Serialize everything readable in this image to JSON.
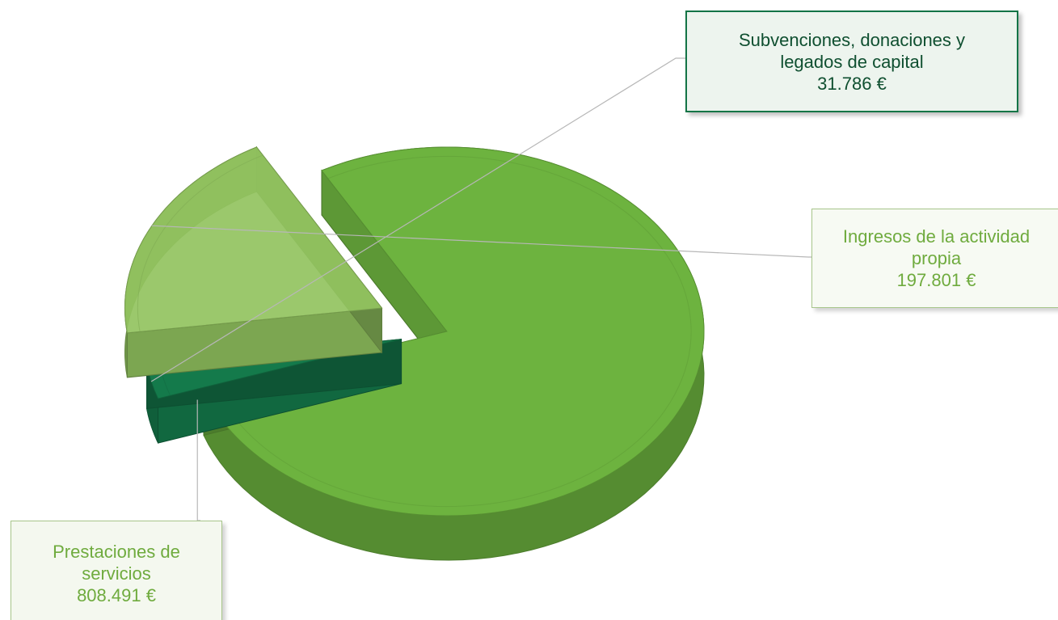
{
  "chart_data": {
    "type": "pie",
    "variant": "3d-exploded",
    "title": "",
    "currency": "€",
    "slices": [
      {
        "name": "Prestaciones de servicios",
        "label_lines": [
          "Prestaciones de",
          "servicios"
        ],
        "value": 808491,
        "value_label": "808.491 €",
        "color": "#6db33f"
      },
      {
        "name": "Subvenciones, donaciones y legados de capital",
        "label_lines": [
          "Subvenciones, donaciones y",
          "legados de capital"
        ],
        "value": 31786,
        "value_label": "31.786 €",
        "color": "#147a4b"
      },
      {
        "name": "Ingresos de la actividad propia",
        "label_lines": [
          "Ingresos de la actividad",
          "propia"
        ],
        "value": 197801,
        "value_label": "197.801 €",
        "color": "#92c35f"
      }
    ]
  }
}
